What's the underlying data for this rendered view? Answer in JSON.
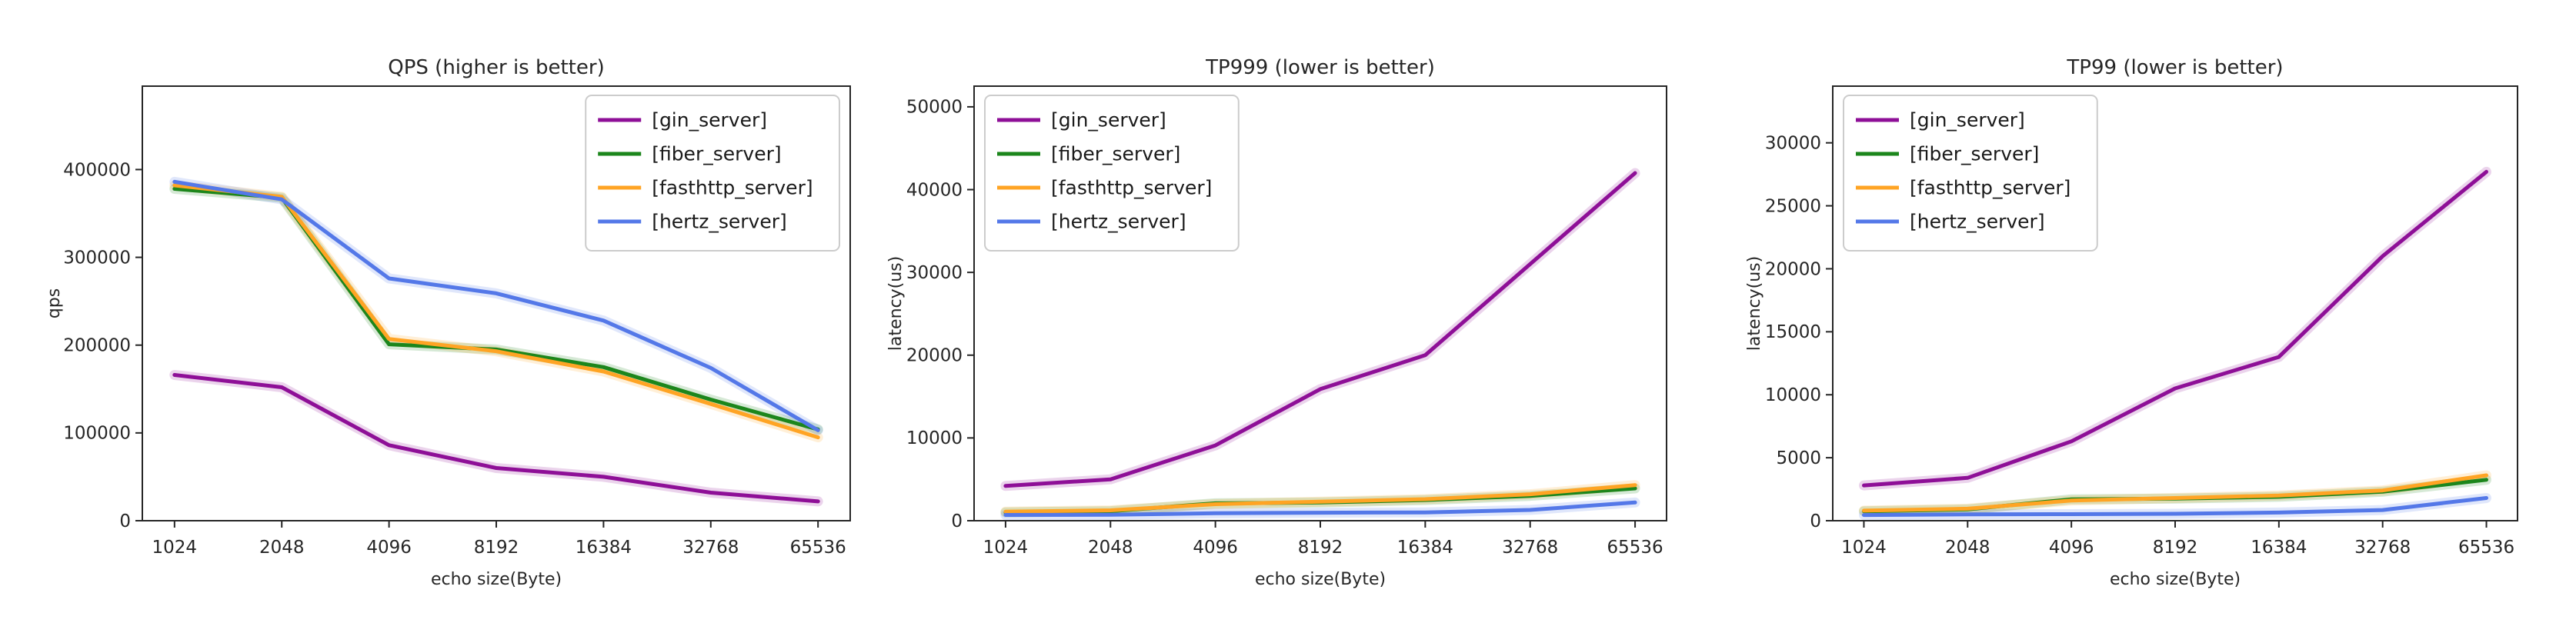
{
  "figure": {
    "background": "#ffffff",
    "text_color": "#262626",
    "spine_color": "#262626",
    "legend_border_color": "#cccccc",
    "legend_background": "#ffffff"
  },
  "chart_data": [
    {
      "type": "line",
      "title": "QPS (higher is better)",
      "xlabel": "echo size(Byte)",
      "ylabel": "qps",
      "x_categories": [
        "1024",
        "2048",
        "4096",
        "8192",
        "16384",
        "32768",
        "65536"
      ],
      "y_ticks": [
        0,
        100000,
        200000,
        300000,
        400000
      ],
      "ylim": [
        0,
        495000
      ],
      "grid": false,
      "legend_position": "upper-right",
      "series": [
        {
          "name": "[gin_server]",
          "color": "#8e0f97",
          "values": [
            166000,
            152000,
            86000,
            60000,
            50000,
            32000,
            22000
          ]
        },
        {
          "name": "[fiber_server]",
          "color": "#1c861c",
          "values": [
            378000,
            368000,
            201000,
            195000,
            175000,
            138000,
            104000
          ]
        },
        {
          "name": "[fasthttp_server]",
          "color": "#ffa424",
          "values": [
            382000,
            369000,
            207000,
            193000,
            170000,
            133000,
            95000
          ]
        },
        {
          "name": "[hertz_server]",
          "color": "#5478e8",
          "values": [
            386000,
            366000,
            276000,
            259000,
            228000,
            174000,
            103000
          ]
        }
      ]
    },
    {
      "type": "line",
      "title": "TP999 (lower is better)",
      "xlabel": "echo size(Byte)",
      "ylabel": "latency(us)",
      "x_categories": [
        "1024",
        "2048",
        "4096",
        "8192",
        "16384",
        "32768",
        "65536"
      ],
      "y_ticks": [
        0,
        10000,
        20000,
        30000,
        40000,
        50000
      ],
      "ylim": [
        0,
        52500
      ],
      "grid": false,
      "legend_position": "upper-left",
      "series": [
        {
          "name": "[gin_server]",
          "color": "#8e0f97",
          "values": [
            4200,
            5000,
            9100,
            15900,
            20000,
            31000,
            42000
          ]
        },
        {
          "name": "[fiber_server]",
          "color": "#1c861c",
          "values": [
            1000,
            1150,
            2100,
            2200,
            2500,
            3000,
            3900
          ]
        },
        {
          "name": "[fasthttp_server]",
          "color": "#ffa424",
          "values": [
            1100,
            1250,
            2000,
            2300,
            2600,
            3200,
            4300
          ]
        },
        {
          "name": "[hertz_server]",
          "color": "#5478e8",
          "values": [
            700,
            720,
            900,
            970,
            1000,
            1300,
            2200
          ]
        }
      ]
    },
    {
      "type": "line",
      "title": "TP99 (lower is better)",
      "xlabel": "echo size(Byte)",
      "ylabel": "latency(us)",
      "x_categories": [
        "1024",
        "2048",
        "4096",
        "8192",
        "16384",
        "32768",
        "65536"
      ],
      "y_ticks": [
        0,
        5000,
        10000,
        15000,
        20000,
        25000,
        30000
      ],
      "ylim": [
        0,
        34500
      ],
      "grid": false,
      "legend_position": "upper-left",
      "series": [
        {
          "name": "[gin_server]",
          "color": "#8e0f97",
          "values": [
            2800,
            3400,
            6300,
            10500,
            13000,
            21000,
            27700
          ]
        },
        {
          "name": "[fiber_server]",
          "color": "#1c861c",
          "values": [
            750,
            900,
            1700,
            1750,
            1900,
            2300,
            3250
          ]
        },
        {
          "name": "[fasthttp_server]",
          "color": "#ffa424",
          "values": [
            800,
            950,
            1600,
            1800,
            2000,
            2400,
            3600
          ]
        },
        {
          "name": "[hertz_server]",
          "color": "#5478e8",
          "values": [
            450,
            500,
            520,
            550,
            650,
            850,
            1800
          ]
        }
      ]
    }
  ]
}
